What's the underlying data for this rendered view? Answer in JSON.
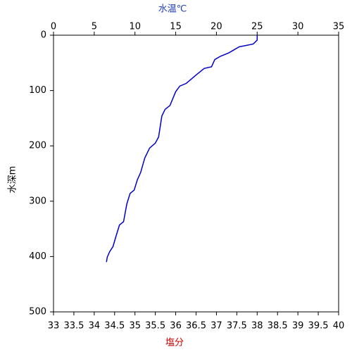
{
  "chart_data": {
    "type": "line",
    "x_label": "水温℃",
    "x_label_color": "#1f3fbf",
    "x2_label": "塩分",
    "x2_label_color": "#cc0000",
    "y_label": "水深m",
    "xlim": [
      0,
      35
    ],
    "xticks": [
      0,
      5,
      10,
      15,
      20,
      25,
      30,
      35
    ],
    "x2lim": [
      33,
      40
    ],
    "x2ticks": [
      33,
      33.5,
      34,
      34.5,
      35,
      35.5,
      36,
      36.5,
      37,
      37.5,
      38,
      38.5,
      39,
      39.5,
      40
    ],
    "ylim": [
      0,
      500
    ],
    "yticks": [
      0,
      100,
      200,
      300,
      400,
      500
    ],
    "y_inverted": true,
    "series": [
      {
        "color": "#0000cc",
        "x": [
          25,
          25,
          24.5,
          22.8,
          21.5,
          20.5,
          19.8,
          19.4,
          18.5,
          17.5,
          16.3,
          15.5,
          15.0,
          14.3,
          13.7,
          13.3,
          12.9,
          12.5,
          11.8,
          11.2,
          10.7,
          10.3,
          9.9,
          9.4,
          9.0,
          8.6,
          8.1,
          7.7,
          7.3,
          6.9,
          6.6,
          6.5
        ],
        "values": [
          0,
          9,
          16,
          21,
          32,
          38,
          44,
          57,
          60,
          72,
          87,
          92,
          102,
          127,
          134,
          146,
          184,
          195,
          204,
          222,
          248,
          261,
          280,
          286,
          305,
          337,
          343,
          362,
          382,
          391,
          401,
          410
        ]
      }
    ]
  }
}
